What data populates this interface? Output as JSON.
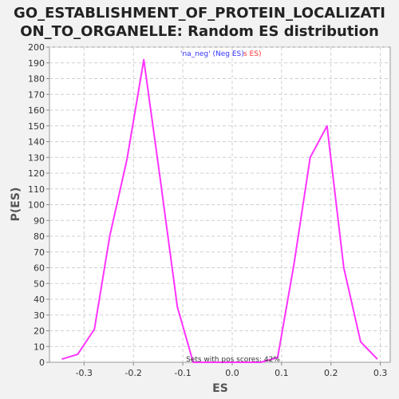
{
  "chart_data": {
    "type": "line",
    "title_lines": [
      "GO_ESTABLISHMENT_OF_PROTEIN_LOCALIZATI",
      "ON_TO_ORGANELLE: Random ES distribution"
    ],
    "xlabel": "ES",
    "ylabel": "P(ES)",
    "xlim": [
      -0.37,
      0.32
    ],
    "ylim": [
      0,
      200
    ],
    "xticks": [
      -0.3,
      -0.2,
      -0.1,
      0.0,
      0.1,
      0.2,
      0.3
    ],
    "xtick_labels": [
      "-0.3",
      "-0.2",
      "-0.1",
      "0.0",
      "0.1",
      "0.2",
      "0.3"
    ],
    "yticks": [
      0,
      10,
      20,
      30,
      40,
      50,
      60,
      70,
      80,
      90,
      100,
      110,
      120,
      130,
      140,
      150,
      160,
      170,
      180,
      190,
      200
    ],
    "ytick_labels": [
      "0",
      "10",
      "20",
      "30",
      "40",
      "50",
      "60",
      "70",
      "80",
      "90",
      "100",
      "110",
      "120",
      "130",
      "140",
      "150",
      "160",
      "170",
      "180",
      "190",
      "200"
    ],
    "grid": true,
    "series": [
      {
        "color": "#ff33ff",
        "points": [
          [
            -0.345,
            2
          ],
          [
            -0.313,
            5
          ],
          [
            -0.279,
            21
          ],
          [
            -0.248,
            80
          ],
          [
            -0.213,
            129
          ],
          [
            -0.179,
            192
          ],
          [
            -0.146,
            117
          ],
          [
            -0.111,
            35
          ],
          [
            -0.079,
            0
          ],
          [
            0.058,
            0
          ],
          [
            0.069,
            1
          ],
          [
            0.092,
            3
          ],
          [
            0.125,
            62
          ],
          [
            0.158,
            130
          ],
          [
            0.192,
            150
          ],
          [
            0.226,
            60
          ],
          [
            0.26,
            13
          ],
          [
            0.294,
            2
          ]
        ]
      }
    ],
    "legend": {
      "neg_text": "'na_neg' (Neg ES)",
      "pos_text": "s ES)",
      "neg_color": "#3333ff",
      "pos_color": "#ff3333",
      "placement": "top-center"
    },
    "annotation": "Sets with pos scores: 42%"
  }
}
